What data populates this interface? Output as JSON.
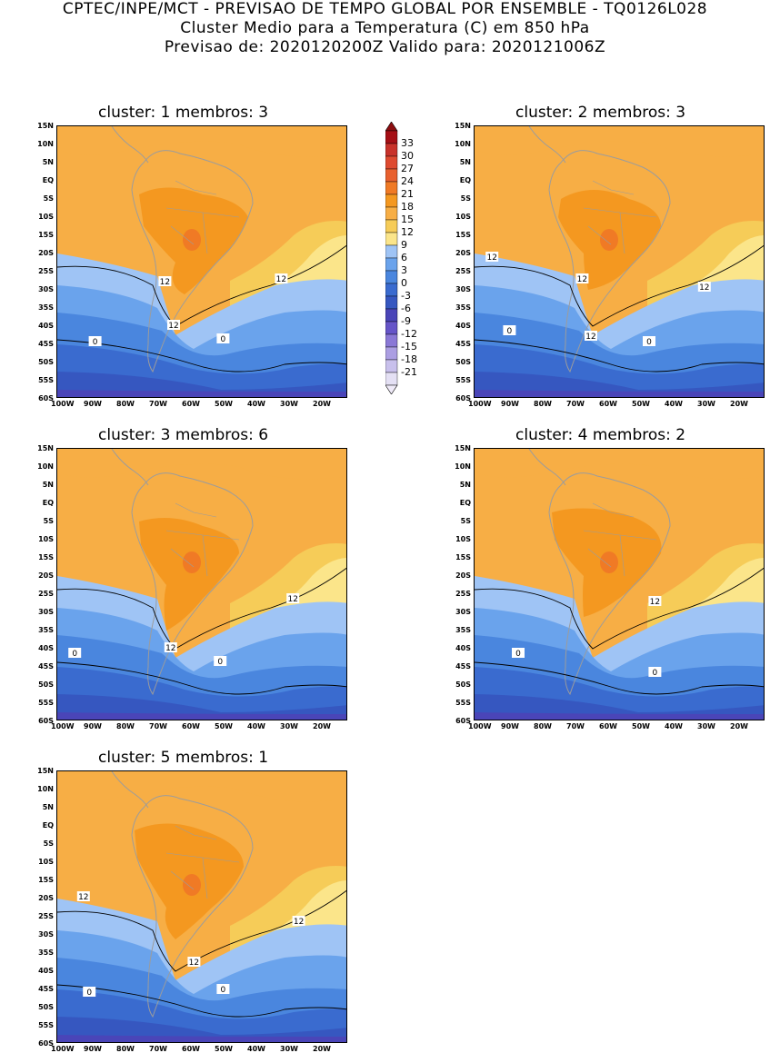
{
  "header": {
    "line1": "CPTEC/INPE/MCT - PREVISAO DE TEMPO GLOBAL POR ENSEMBLE - TQ0126L028",
    "line2": "Cluster Medio para a Temperatura (C) em 850 hPa",
    "line3": "Previsao de: 2020120200Z    Valido para: 2020121006Z"
  },
  "axes": {
    "lat_labels": [
      "15N",
      "10N",
      "5N",
      "EQ",
      "5S",
      "10S",
      "15S",
      "20S",
      "25S",
      "30S",
      "35S",
      "40S",
      "45S",
      "50S",
      "55S",
      "60S"
    ],
    "lon_labels": [
      "100W",
      "90W",
      "80W",
      "70W",
      "60W",
      "50W",
      "40W",
      "30W",
      "20W"
    ]
  },
  "colorbar": {
    "levels": [
      "33",
      "30",
      "27",
      "24",
      "21",
      "18",
      "15",
      "12",
      "9",
      "6",
      "3",
      "0",
      "-3",
      "-6",
      "-9",
      "-12",
      "-15",
      "-18",
      "-21"
    ],
    "colors": [
      "#a50f15",
      "#c8322a",
      "#de4a30",
      "#e8602e",
      "#f07a25",
      "#f49820",
      "#f7ae45",
      "#f6cc58",
      "#fbe58a",
      "#9fc4f5",
      "#6aa3ec",
      "#4a86de",
      "#3a6bcf",
      "#3657c0",
      "#4a45b8",
      "#6655c8",
      "#8a78d6",
      "#ab9ee2",
      "#c8c0ec",
      "#e4e0f4"
    ],
    "top_color": "#8c0d10",
    "bottom_color": "#efeaf8"
  },
  "clusters": [
    {
      "label": "cluster: 1   membros: 3",
      "contour_labels": [
        "12",
        "12",
        "12",
        "0",
        "0"
      ]
    },
    {
      "label": "cluster: 2   membros: 3",
      "contour_labels": [
        "12",
        "12",
        "12",
        "12",
        "0",
        "0"
      ]
    },
    {
      "label": "cluster: 3   membros: 6",
      "contour_labels": [
        "12",
        "12",
        "0",
        "0"
      ]
    },
    {
      "label": "cluster: 4   membros: 2",
      "contour_labels": [
        "12",
        "0",
        "0"
      ]
    },
    {
      "label": "cluster: 5   membros: 1",
      "contour_labels": [
        "12",
        "12",
        "12",
        "0",
        "0"
      ]
    }
  ]
}
